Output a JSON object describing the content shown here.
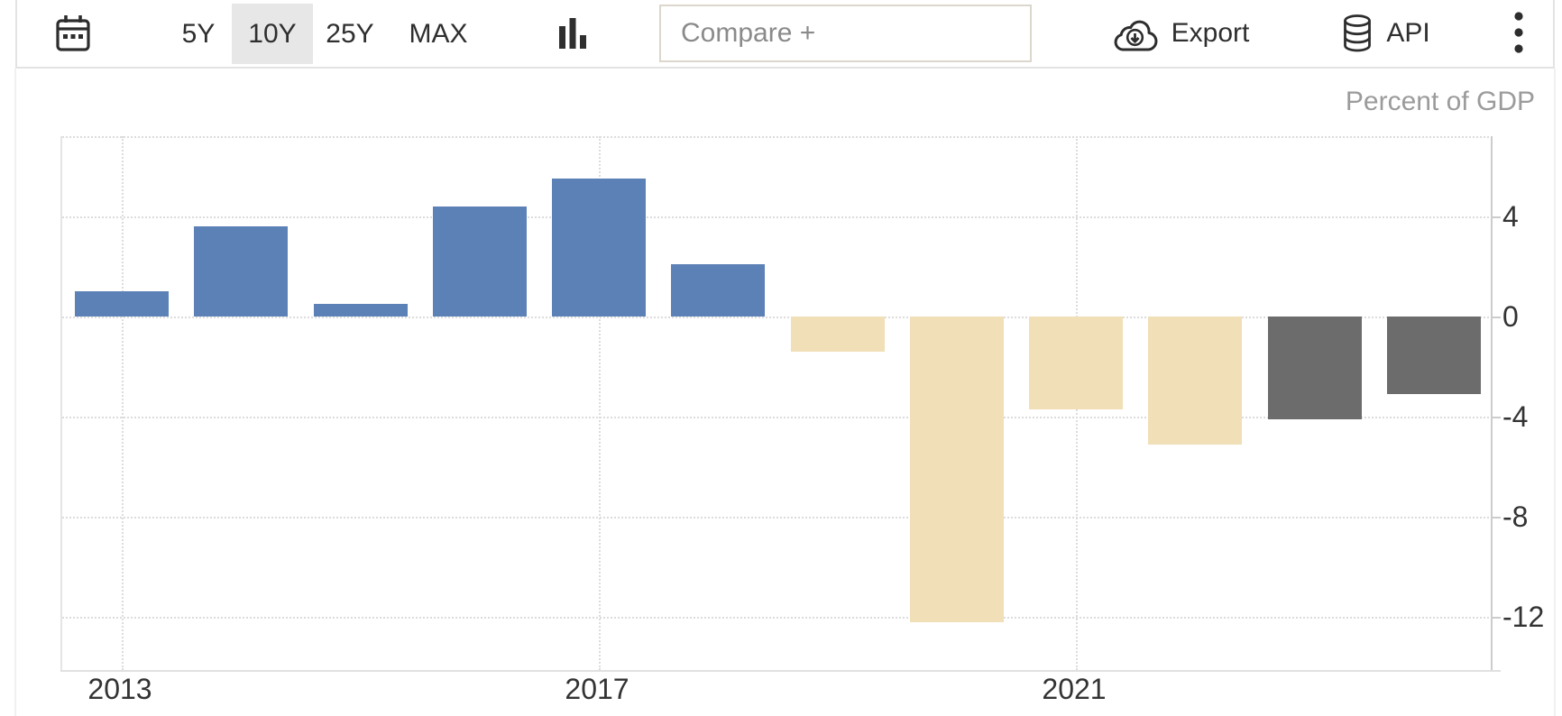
{
  "toolbar": {
    "calendar_icon": "calendar-icon",
    "ranges": [
      {
        "label": "5Y",
        "active": false
      },
      {
        "label": "10Y",
        "active": true
      },
      {
        "label": "25Y",
        "active": false
      },
      {
        "label": "MAX",
        "active": false
      }
    ],
    "chart_type_icon": "bar-chart-icon",
    "compare": {
      "placeholder": "Compare +"
    },
    "export_label": "Export",
    "api_label": "API",
    "kebab_icon": "kebab-menu-icon"
  },
  "chart": {
    "units_label": "Percent of GDP"
  },
  "chart_data": {
    "type": "bar",
    "title": "",
    "ylabel": "Percent of GDP",
    "categories": [
      2013,
      2014,
      2015,
      2016,
      2017,
      2018,
      2019,
      2020,
      2021,
      2022,
      2023,
      2024
    ],
    "values": [
      1.0,
      3.6,
      0.5,
      4.4,
      5.5,
      2.1,
      -1.4,
      -12.2,
      -3.7,
      -5.1,
      -4.1,
      -3.1
    ],
    "bar_roles": [
      "blue",
      "blue",
      "blue",
      "blue",
      "blue",
      "blue",
      "tan",
      "tan",
      "tan",
      "tan",
      "gray",
      "gray"
    ],
    "palette": {
      "blue": "#5b81b6",
      "tan": "#f0dfb7",
      "gray": "#6c6c6c"
    },
    "yticks": [
      4,
      0,
      -4,
      -8,
      -12
    ],
    "xticks": [
      2013,
      2017,
      2021
    ],
    "ylim": [
      -14.2,
      7.2
    ],
    "grid": "dotted",
    "legend": "none",
    "y_axis_position": "right"
  }
}
